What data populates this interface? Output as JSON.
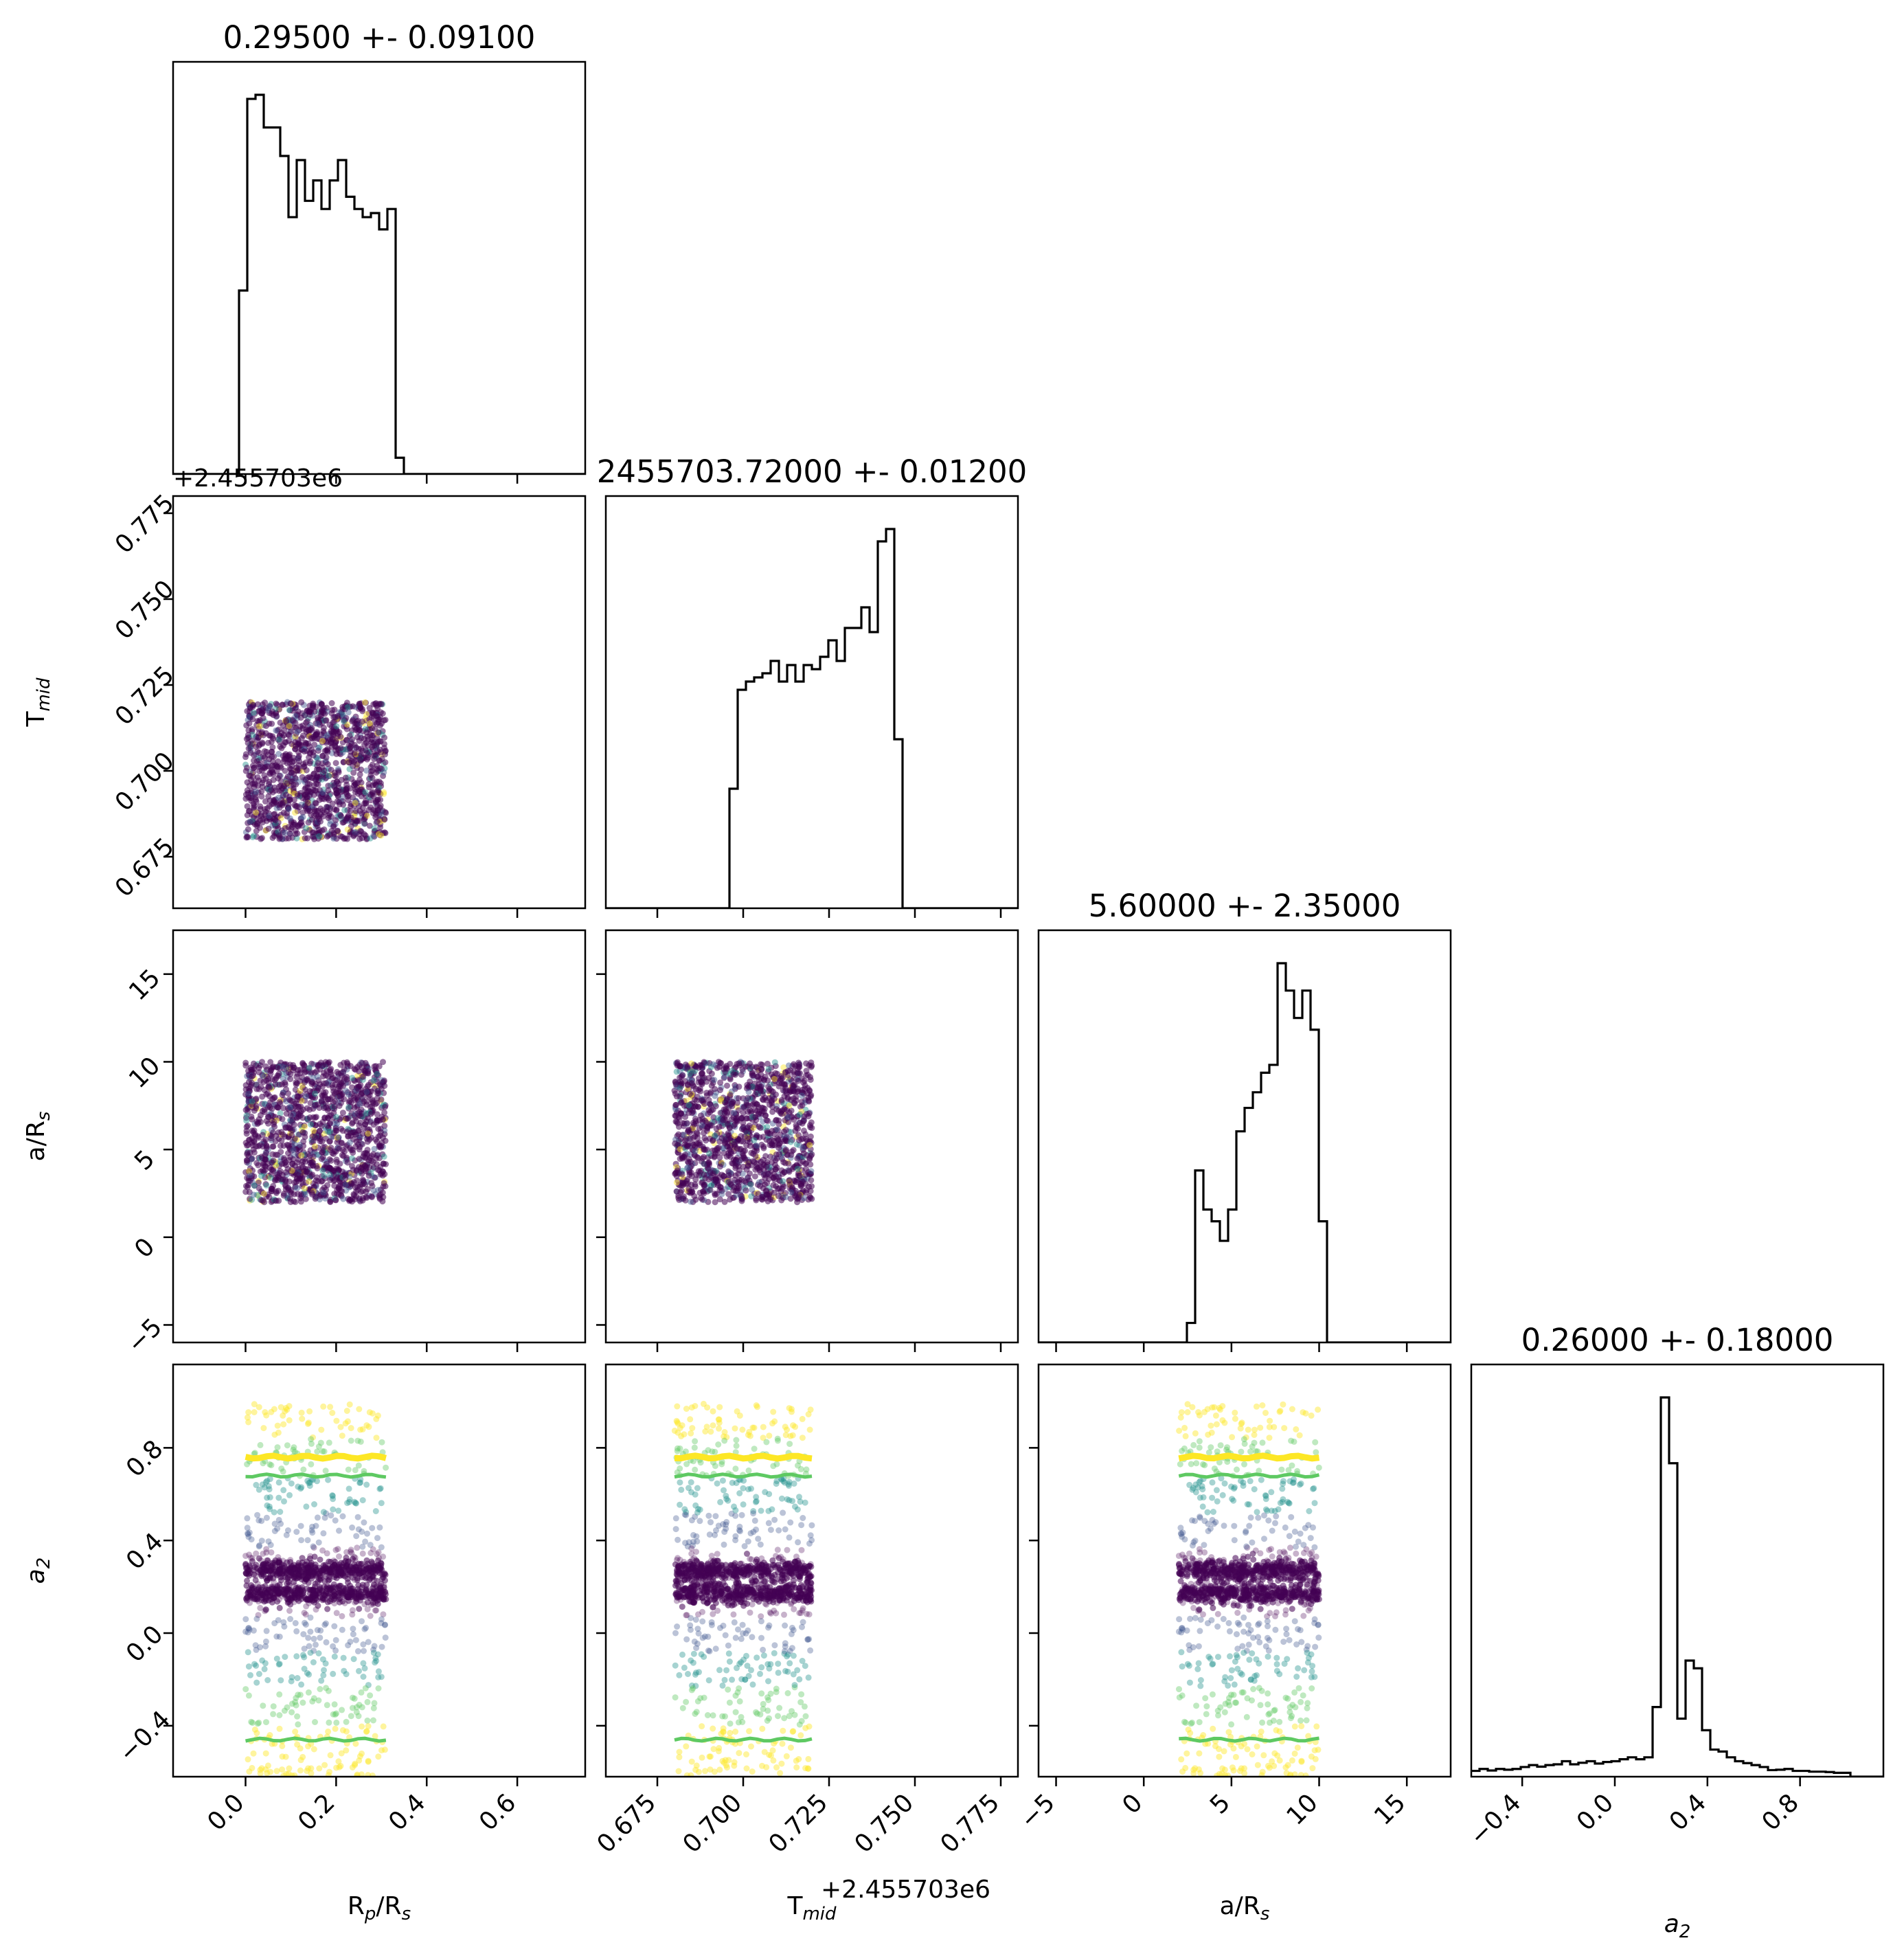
{
  "chart_data": {
    "type": "scatter",
    "parameters": [
      {
        "key": "rp",
        "label": "R",
        "label_sub": "p",
        "label_tail": "/R",
        "label_tail_sub": "s",
        "title": "0.29500 +- 0.09100",
        "range": [
          -0.16,
          0.75
        ],
        "ticks": [
          0.0,
          0.2,
          0.4,
          0.6
        ],
        "tick_labels": [
          "0.0",
          "0.2",
          "0.4",
          "0.6"
        ],
        "offset": ""
      },
      {
        "key": "tmid",
        "label": "T",
        "label_sub": "mid",
        "label_tail": "",
        "label_tail_sub": "",
        "title": "2455703.72000 +- 0.01200",
        "range": [
          0.66,
          0.78
        ],
        "ticks": [
          0.675,
          0.7,
          0.725,
          0.75,
          0.775
        ],
        "tick_labels": [
          "0.675",
          "0.700",
          "0.725",
          "0.750",
          "0.775"
        ],
        "offset": "+2.455703e6"
      },
      {
        "key": "aRs",
        "label": "a/R",
        "label_sub": "s",
        "label_tail": "",
        "label_tail_sub": "",
        "title": "5.60000 +- 2.35000",
        "range": [
          -6,
          17.5
        ],
        "ticks": [
          -5,
          0,
          5,
          10,
          15
        ],
        "tick_labels": [
          "−5",
          "0",
          "5",
          "10",
          "15"
        ],
        "offset": ""
      },
      {
        "key": "a2",
        "label": "a",
        "label_sub": "2",
        "label_tail": "",
        "label_tail_sub": "",
        "italic": true,
        "title": "0.26000 +- 0.18000",
        "range": [
          -0.62,
          1.16
        ],
        "ticks": [
          -0.4,
          0.0,
          0.4,
          0.8
        ],
        "tick_labels": [
          "−0.4",
          "0.0",
          "0.4",
          "0.8"
        ],
        "offset": ""
      }
    ],
    "histograms": [
      {
        "param": "rp",
        "edges_range": [
          -0.16,
          0.75
        ],
        "bins": 50,
        "values": [
          0,
          0,
          0,
          0,
          0,
          0,
          0,
          0,
          0.45,
          0.92,
          0.93,
          0.85,
          0.85,
          0.78,
          0.63,
          0.77,
          0.67,
          0.72,
          0.65,
          0.72,
          0.77,
          0.68,
          0.65,
          0.63,
          0.64,
          0.6,
          0.65,
          0.04,
          0,
          0,
          0,
          0,
          0,
          0,
          0,
          0,
          0,
          0,
          0,
          0,
          0,
          0,
          0,
          0,
          0,
          0,
          0,
          0,
          0,
          0
        ]
      },
      {
        "param": "tmid",
        "edges_range": [
          0.66,
          0.78
        ],
        "bins": 50,
        "values": [
          0,
          0,
          0,
          0,
          0,
          0,
          0,
          0,
          0,
          0,
          0,
          0,
          0,
          0,
          0,
          0.29,
          0.53,
          0.55,
          0.56,
          0.57,
          0.6,
          0.55,
          0.59,
          0.55,
          0.59,
          0.58,
          0.61,
          0.65,
          0.6,
          0.68,
          0.68,
          0.73,
          0.67,
          0.89,
          0.92,
          0.41,
          0,
          0,
          0,
          0,
          0,
          0,
          0,
          0,
          0,
          0,
          0,
          0,
          0,
          0
        ]
      },
      {
        "param": "aRs",
        "edges_range": [
          -6,
          17.5
        ],
        "bins": 50,
        "values": [
          0,
          0,
          0,
          0,
          0,
          0,
          0,
          0,
          0,
          0,
          0,
          0,
          0,
          0,
          0,
          0,
          0,
          0,
          0.05,
          0.44,
          0.34,
          0.31,
          0.26,
          0.34,
          0.54,
          0.6,
          0.64,
          0.69,
          0.71,
          0.97,
          0.9,
          0.83,
          0.9,
          0.8,
          0.31,
          0,
          0,
          0,
          0,
          0,
          0,
          0,
          0,
          0,
          0,
          0,
          0,
          0,
          0,
          0
        ]
      },
      {
        "param": "a2",
        "edges_range": [
          -0.62,
          1.16
        ],
        "bins": 50,
        "values": [
          0.015,
          0.02,
          0.016,
          0.02,
          0.018,
          0.02,
          0.025,
          0.03,
          0.026,
          0.03,
          0.032,
          0.04,
          0.032,
          0.036,
          0.04,
          0.034,
          0.038,
          0.04,
          0.045,
          0.05,
          0.045,
          0.05,
          0.18,
          0.98,
          0.81,
          0.15,
          0.3,
          0.28,
          0.12,
          0.07,
          0.065,
          0.05,
          0.04,
          0.035,
          0.03,
          0.025,
          0.017,
          0.018,
          0.02,
          0.015,
          0.015,
          0.013,
          0.013,
          0.012,
          0.01,
          0.01,
          0,
          0,
          0,
          0
        ]
      }
    ],
    "scatter_pairs": [
      {
        "x": "rp",
        "y": "tmid"
      },
      {
        "x": "rp",
        "y": "aRs"
      },
      {
        "x": "tmid",
        "y": "aRs"
      },
      {
        "x": "rp",
        "y": "a2"
      },
      {
        "x": "tmid",
        "y": "a2"
      },
      {
        "x": "aRs",
        "y": "a2"
      }
    ],
    "sample_box": {
      "rp": [
        0.0,
        0.31
      ],
      "tmid": [
        0.68,
        0.72
      ],
      "aRs": [
        2.0,
        10.0
      ],
      "a2": [
        -0.62,
        0.99
      ]
    },
    "a2_density_bands": [
      0.27,
      0.17
    ],
    "contour_levels": [
      {
        "color": "#fde725",
        "a2": 0.76
      },
      {
        "color": "#5ec962",
        "a2": 0.68
      },
      {
        "color": "#5ec962",
        "a2": -0.46
      }
    ],
    "colormap": "viridis",
    "colors": {
      "dense": "#440154",
      "mid": "#3b528b",
      "teal": "#21918c",
      "green": "#5ec962",
      "yellow": "#fde725"
    },
    "grid": false,
    "legend": "none"
  }
}
